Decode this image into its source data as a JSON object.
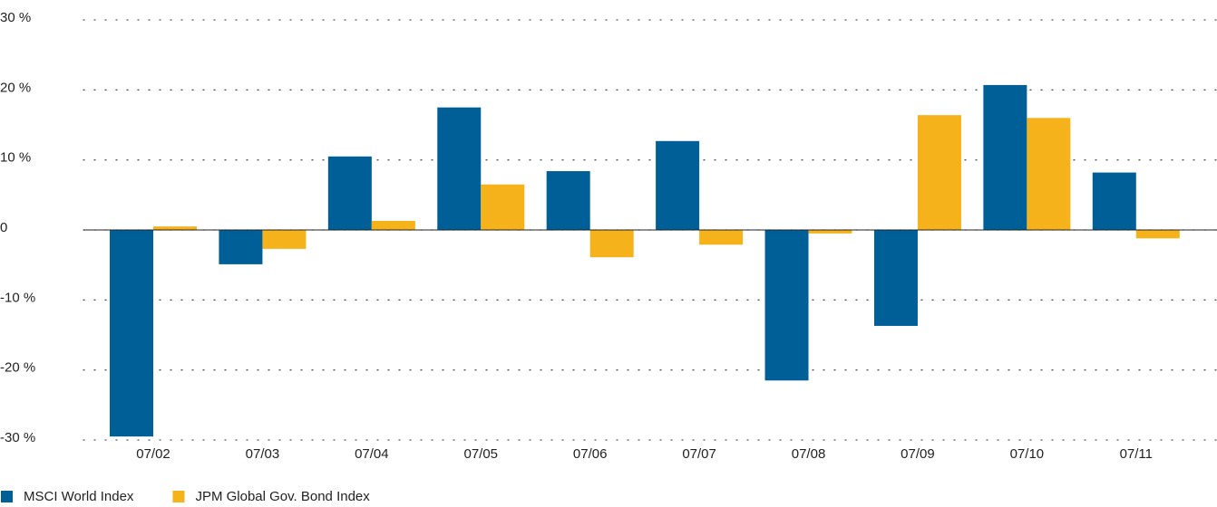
{
  "chart_data": {
    "type": "bar",
    "categories": [
      "07/02",
      "07/03",
      "07/04",
      "07/05",
      "07/06",
      "07/07",
      "07/08",
      "07/09",
      "07/10",
      "07/11"
    ],
    "series": [
      {
        "name": "MSCI World Index",
        "color": "#005f96",
        "values": [
          -29.5,
          -4.9,
          10.5,
          17.5,
          8.4,
          12.7,
          -21.5,
          -13.7,
          20.7,
          8.2
        ]
      },
      {
        "name": "JPM Global Gov. Bond Index",
        "color": "#f5b21a",
        "values": [
          0.5,
          -2.7,
          1.3,
          6.5,
          -3.9,
          -2.1,
          -0.5,
          16.4,
          16.0,
          -1.2
        ]
      }
    ],
    "ylim": [
      -30,
      30
    ],
    "yticks": [
      {
        "value": -30,
        "label": "-30 %"
      },
      {
        "value": -20,
        "label": "-20 %"
      },
      {
        "value": -10,
        "label": "-10 %"
      },
      0,
      {
        "value": 10,
        "label": "10 %"
      },
      {
        "value": 20,
        "label": "20 %"
      },
      {
        "value": 30,
        "label": "30 %"
      }
    ],
    "grid": true,
    "legend": "bottom-left"
  }
}
